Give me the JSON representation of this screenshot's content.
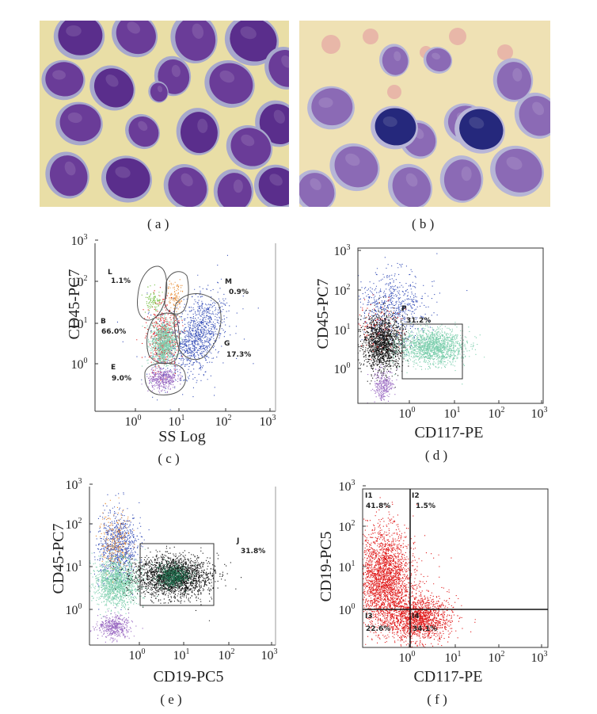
{
  "panels": {
    "a": {
      "caption": "( a )"
    },
    "b": {
      "caption": "( b )"
    },
    "c": {
      "caption": "( c )",
      "x_label": "SS Log",
      "y_label": "CD45-PC7",
      "gates": [
        {
          "id": "L",
          "value": "1.1%"
        },
        {
          "id": "M",
          "value": "0.9%"
        },
        {
          "id": "B",
          "value": "66.0%"
        },
        {
          "id": "G",
          "value": "17.3%"
        },
        {
          "id": "E",
          "value": "9.0%"
        }
      ]
    },
    "d": {
      "caption": "( d )",
      "x_label": "CD117-PE",
      "y_label": "CD45-PC7",
      "gates": [
        {
          "id": "P",
          "value": "31.2%"
        }
      ]
    },
    "e": {
      "caption": "( e )",
      "x_label": "CD19-PC5",
      "y_label": "CD45-PC7",
      "gates": [
        {
          "id": "J",
          "value": "31.8%"
        }
      ]
    },
    "f": {
      "caption": "( f )",
      "x_label": "CD117-PE",
      "y_label": "CD19-PC5",
      "quadrants": [
        {
          "id": "I1",
          "value": "41.8%"
        },
        {
          "id": "I2",
          "value": "1.5%"
        },
        {
          "id": "I3",
          "value": "22.6%"
        },
        {
          "id": "I4",
          "value": "34.1%"
        }
      ]
    }
  },
  "tick_labels": {
    "ten": "10",
    "exps": [
      "0",
      "1",
      "2",
      "3"
    ]
  },
  "colors": {
    "blast_teal": "#7ecfae",
    "black_events": "#111111",
    "blue_events": "#3850b8",
    "red_events": "#e01818",
    "green_events": "#7cc24a",
    "orange_events": "#e8903a",
    "purple_events": "#9a6ac2",
    "slide_bg": "#e9dea6",
    "nucleus": "#6a3c98"
  }
}
